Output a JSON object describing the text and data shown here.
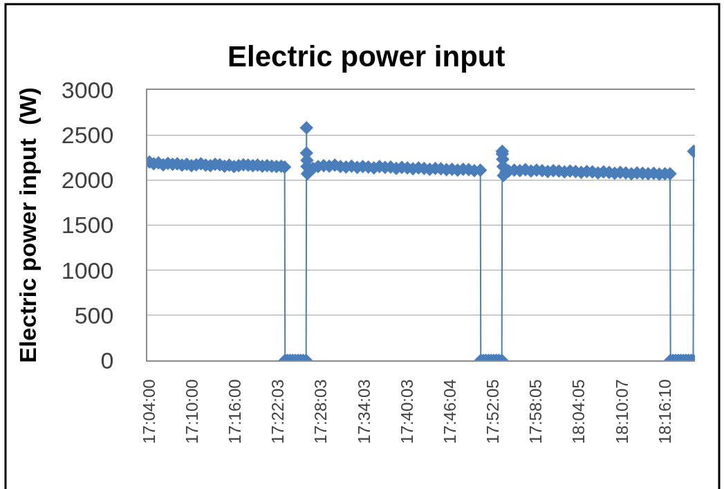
{
  "chart_data": {
    "type": "line",
    "title": "Electric power input",
    "ylabel": "Electric power input  (W)",
    "color": "#4a7ebb",
    "marker": "diamond",
    "line_style": "solid",
    "grid": "y",
    "x": [
      17.067,
      17.077,
      17.088,
      17.099,
      17.11,
      17.121,
      17.132,
      17.143,
      17.154,
      17.165,
      17.176,
      17.187,
      17.198,
      17.209,
      17.22,
      17.231,
      17.242,
      17.253,
      17.264,
      17.275,
      17.286,
      17.297,
      17.308,
      17.319,
      17.33,
      17.341,
      17.352,
      17.363,
      17.374,
      17.382,
      17.383,
      17.389,
      17.395,
      17.401,
      17.407,
      17.413,
      17.419,
      17.425,
      17.432,
      17.433,
      17.433,
      17.434,
      17.434,
      17.435,
      17.442,
      17.448,
      17.46,
      17.473,
      17.486,
      17.499,
      17.512,
      17.525,
      17.538,
      17.551,
      17.564,
      17.577,
      17.59,
      17.603,
      17.616,
      17.629,
      17.642,
      17.655,
      17.668,
      17.681,
      17.694,
      17.707,
      17.72,
      17.733,
      17.746,
      17.759,
      17.772,
      17.785,
      17.798,
      17.811,
      17.824,
      17.838,
      17.839,
      17.845,
      17.851,
      17.857,
      17.863,
      17.869,
      17.875,
      17.881,
      17.888,
      17.889,
      17.889,
      17.89,
      17.891,
      17.892,
      17.898,
      17.904,
      17.917,
      17.93,
      17.943,
      17.956,
      17.969,
      17.982,
      17.995,
      18.008,
      18.021,
      18.034,
      18.047,
      18.06,
      18.073,
      18.086,
      18.099,
      18.112,
      18.125,
      18.138,
      18.151,
      18.164,
      18.177,
      18.19,
      18.203,
      18.216,
      18.229,
      18.242,
      18.255,
      18.268,
      18.28,
      18.281,
      18.287,
      18.293,
      18.299,
      18.305,
      18.311,
      18.317,
      18.323,
      18.329,
      18.334,
      18.335
    ],
    "values": [
      2200,
      2180,
      2190,
      2170,
      2185,
      2175,
      2180,
      2165,
      2175,
      2160,
      2170,
      2180,
      2165,
      2160,
      2175,
      2170,
      2155,
      2165,
      2150,
      2160,
      2170,
      2165,
      2160,
      2165,
      2155,
      2160,
      2155,
      2150,
      2155,
      2145,
      0,
      0,
      0,
      0,
      0,
      0,
      0,
      0,
      0,
      2580,
      2300,
      2220,
      2150,
      2070,
      2110,
      2130,
      2150,
      2160,
      2155,
      2165,
      2150,
      2145,
      2155,
      2140,
      2150,
      2145,
      2135,
      2150,
      2140,
      2145,
      2130,
      2140,
      2135,
      2125,
      2135,
      2130,
      2120,
      2130,
      2125,
      2115,
      2120,
      2110,
      2120,
      2115,
      2105,
      2110,
      0,
      0,
      0,
      0,
      0,
      0,
      0,
      0,
      0,
      2320,
      2290,
      2230,
      2150,
      2050,
      2090,
      2100,
      2110,
      2105,
      2115,
      2100,
      2110,
      2105,
      2095,
      2105,
      2100,
      2090,
      2100,
      2095,
      2085,
      2095,
      2090,
      2080,
      2090,
      2085,
      2075,
      2085,
      2080,
      2070,
      2080,
      2075,
      2070,
      2075,
      2065,
      2070,
      2070,
      0,
      0,
      0,
      0,
      0,
      0,
      0,
      0,
      0,
      0,
      2320
    ],
    "xlim": [
      17.062,
      18.338
    ],
    "xticks": [
      {
        "value": 17.0667,
        "label": "17:04:00"
      },
      {
        "value": 17.1667,
        "label": "17:10:00"
      },
      {
        "value": 17.2667,
        "label": "17:16:00"
      },
      {
        "value": 17.3675,
        "label": "17:22:03"
      },
      {
        "value": 17.4675,
        "label": "17:28:03"
      },
      {
        "value": 17.5675,
        "label": "17:34:03"
      },
      {
        "value": 17.6675,
        "label": "17:40:03"
      },
      {
        "value": 17.7678,
        "label": "17:46:04"
      },
      {
        "value": 17.8681,
        "label": "17:52:05"
      },
      {
        "value": 17.9681,
        "label": "17:58:05"
      },
      {
        "value": 18.0681,
        "label": "18:04:05"
      },
      {
        "value": 18.1686,
        "label": "18:10:07"
      },
      {
        "value": 18.2694,
        "label": "18:16:10"
      }
    ],
    "ylim": [
      0,
      3000
    ],
    "yticks": [
      0,
      500,
      1000,
      1500,
      2000,
      2500,
      3000
    ]
  }
}
